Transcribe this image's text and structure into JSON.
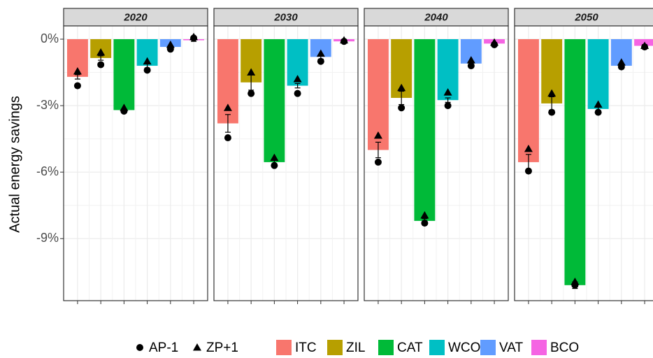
{
  "chart_data": {
    "type": "bar",
    "ylabel": "Actual energy savings",
    "ylim": [
      -11.8,
      0.6
    ],
    "yticks": [
      {
        "value": 0,
        "label": "0%"
      },
      {
        "value": -3,
        "label": "-3%"
      },
      {
        "value": -6,
        "label": "-6%"
      },
      {
        "value": -9,
        "label": "-9%"
      }
    ],
    "grid": true,
    "categories": [
      "ITC",
      "ZIL",
      "CAT",
      "WCO",
      "VAT",
      "BCO"
    ],
    "colors": [
      "#f8766d",
      "#b79f00",
      "#00ba38",
      "#00bfc4",
      "#619cff",
      "#f564e3"
    ],
    "point_series": [
      {
        "name": "AP-1",
        "marker": "circle"
      },
      {
        "name": "ZP+1",
        "marker": "triangle"
      }
    ],
    "legend": "bottom",
    "facets": [
      {
        "title": "2020",
        "values": [
          -1.7,
          -0.85,
          -3.2,
          -1.2,
          -0.35,
          -0.05
        ],
        "errors": [
          0.1,
          0.1,
          0.05,
          0.1,
          0.05,
          0.05
        ],
        "points": [
          [
            -2.1,
            -1.15,
            -3.25,
            -1.4,
            -0.45,
            0.05
          ],
          [
            -1.45,
            -0.6,
            -3.1,
            -1.0,
            -0.25,
            0.1
          ]
        ]
      },
      {
        "title": "2030",
        "values": [
          -3.8,
          -1.95,
          -5.55,
          -2.1,
          -0.8,
          -0.1
        ],
        "errors": [
          0.4,
          0.35,
          0.1,
          0.1,
          0.1,
          0.05
        ],
        "points": [
          [
            -4.45,
            -2.45,
            -5.7,
            -2.45,
            -1.0,
            -0.1
          ],
          [
            -3.1,
            -1.5,
            -5.35,
            -1.8,
            -0.65,
            -0.05
          ]
        ]
      },
      {
        "title": "2040",
        "values": [
          -5.0,
          -2.65,
          -8.2,
          -2.75,
          -1.1,
          -0.2
        ],
        "errors": [
          0.35,
          0.3,
          0.1,
          0.1,
          0.1,
          0.05
        ],
        "points": [
          [
            -5.55,
            -3.1,
            -8.3,
            -3.0,
            -1.2,
            -0.25
          ],
          [
            -4.35,
            -2.2,
            -7.95,
            -2.4,
            -0.95,
            -0.15
          ]
        ]
      },
      {
        "title": "2050",
        "values": [
          -5.55,
          -2.9,
          -11.1,
          -3.15,
          -1.2,
          -0.3
        ],
        "errors": [
          0.35,
          0.3,
          0.15,
          0.1,
          0.05,
          0.05
        ],
        "points": [
          [
            -5.95,
            -3.3,
            -11.1,
            -3.3,
            -1.25,
            -0.35
          ],
          [
            -4.95,
            -2.45,
            -10.95,
            -2.95,
            -1.05,
            -0.3
          ]
        ]
      }
    ]
  }
}
